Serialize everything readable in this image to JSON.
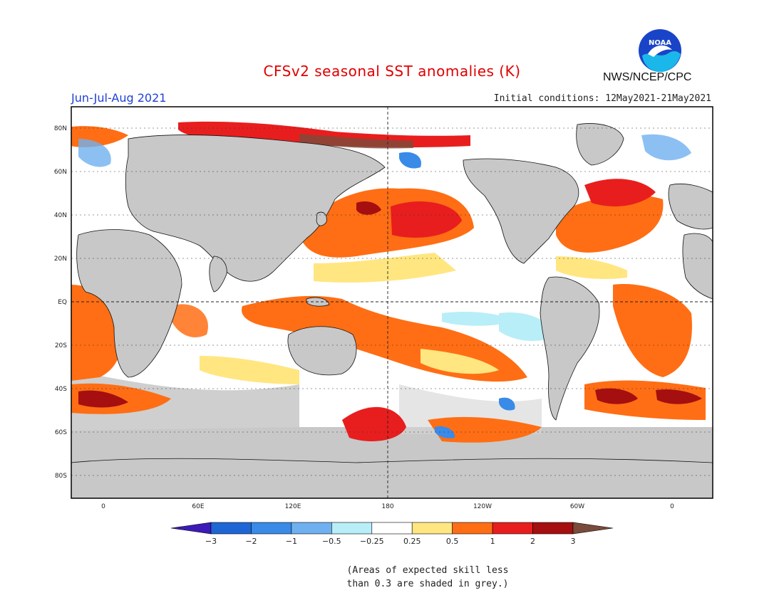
{
  "header": {
    "title": "CFSv2 seasonal SST anomalies (K)",
    "season": "Jun-Jul-Aug 2021",
    "initial_conditions": "Initial conditions: 12May2021-21May2021",
    "agency": "NWS/NCEP/CPC",
    "logo_text": "NOAA"
  },
  "map": {
    "lat_labels": [
      "80N",
      "60N",
      "40N",
      "20N",
      "EQ",
      "20S",
      "40S",
      "60S",
      "80S"
    ],
    "lon_labels": [
      "0",
      "60E",
      "120E",
      "180",
      "120W",
      "60W",
      "0"
    ],
    "colors": {
      "land": "#c8c8c8",
      "grey_skill": "#c8c8c8",
      "ocean_neutral": "#ffffff"
    }
  },
  "colorbar": {
    "labels": [
      "-3",
      "-2",
      "-1",
      "-0.5",
      "-0.25",
      "0.25",
      "0.5",
      "1",
      "2",
      "3"
    ],
    "colors": [
      "#3d1ab8",
      "#1e66d6",
      "#3a8ae8",
      "#6fb0f0",
      "#b8eef8",
      "#ffffff",
      "#ffe680",
      "#ff6e14",
      "#e81e1e",
      "#a50f0f",
      "#7a4b3a"
    ]
  },
  "footnote": {
    "line1": "(Areas of expected skill less",
    "line2": "than 0.3 are shaded in grey.)"
  }
}
